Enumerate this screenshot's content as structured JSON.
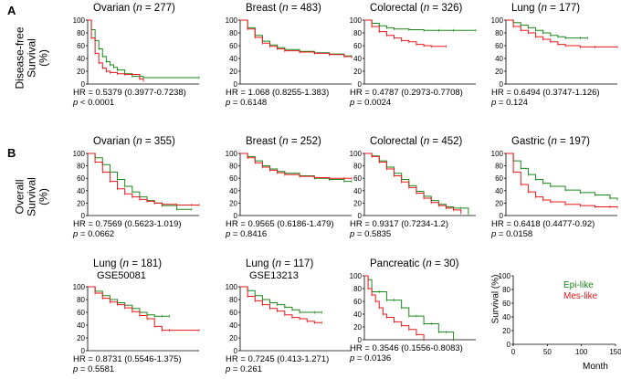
{
  "colors": {
    "epi": "#1a8a1a",
    "mes": "#e8181c"
  },
  "panel_labels": {
    "a": "A",
    "b": "B"
  },
  "row_labels": {
    "a": [
      "Disease-free",
      "Survival",
      "(%)"
    ],
    "b": [
      "Overall",
      "Survival",
      "(%)"
    ]
  },
  "legend": {
    "epi": "Epi-like",
    "mes": "Mes-like"
  },
  "legend_axis": {
    "ylabel": "Survival (%)",
    "xlabel": "Month"
  },
  "chart_data": [
    {
      "type": "line",
      "id": "a1",
      "title": "Ovarian (",
      "n": "277",
      "xlim": [
        0,
        150
      ],
      "ylim": [
        0,
        100
      ],
      "yticks": [
        "100",
        "80",
        "60",
        "40",
        "20",
        "0"
      ],
      "hr": "HR = 0.5379 (0.3977-0.7238)",
      "p_prefix": "p",
      "p": " < 0.0001",
      "series": [
        {
          "key": "epi",
          "x": [
            0,
            5,
            10,
            15,
            20,
            25,
            30,
            35,
            40,
            50,
            60,
            75,
            150
          ],
          "y": [
            100,
            85,
            68,
            55,
            43,
            35,
            30,
            26,
            22,
            16,
            12,
            10,
            10
          ]
        },
        {
          "key": "mes",
          "x": [
            0,
            5,
            10,
            15,
            20,
            25,
            30,
            40,
            50,
            60,
            70,
            75
          ],
          "y": [
            100,
            72,
            48,
            33,
            25,
            20,
            18,
            16,
            15,
            15,
            8,
            5
          ]
        }
      ]
    },
    {
      "type": "line",
      "id": "a2",
      "title": "Breast (",
      "n": "483",
      "xlim": [
        0,
        150
      ],
      "ylim": [
        0,
        100
      ],
      "yticks": [
        "100",
        "80",
        "60",
        "40",
        "20",
        "0"
      ],
      "hr": "HR = 1.068 (0.8255-1.383)",
      "p_prefix": "p",
      "p": " = 0.6148",
      "series": [
        {
          "key": "epi",
          "x": [
            0,
            10,
            20,
            30,
            40,
            50,
            60,
            80,
            100,
            120,
            140,
            150
          ],
          "y": [
            100,
            88,
            76,
            67,
            61,
            57,
            54,
            51,
            49,
            47,
            44,
            43
          ]
        },
        {
          "key": "mes",
          "x": [
            0,
            10,
            20,
            30,
            40,
            50,
            60,
            80,
            100,
            120,
            140,
            150
          ],
          "y": [
            100,
            86,
            73,
            64,
            59,
            55,
            52,
            50,
            48,
            46,
            43,
            42
          ]
        }
      ]
    },
    {
      "type": "line",
      "id": "a3",
      "title": "Colorectal (",
      "n": "326",
      "xlim": [
        0,
        150
      ],
      "ylim": [
        0,
        100
      ],
      "yticks": [
        "100",
        "80",
        "60",
        "40",
        "20",
        "0"
      ],
      "hr": "HR = 0.4787 (0.2973-0.7708)",
      "p_prefix": "p",
      "p": " = 0.0024",
      "series": [
        {
          "key": "epi",
          "x": [
            0,
            10,
            20,
            30,
            40,
            60,
            80,
            100,
            120,
            150
          ],
          "y": [
            100,
            95,
            91,
            88,
            86,
            85,
            84,
            84,
            84,
            84
          ]
        },
        {
          "key": "mes",
          "x": [
            0,
            10,
            20,
            30,
            40,
            50,
            60,
            70,
            80,
            90,
            110
          ],
          "y": [
            100,
            90,
            82,
            76,
            72,
            68,
            66,
            62,
            60,
            59,
            59
          ]
        }
      ]
    },
    {
      "type": "line",
      "id": "a4",
      "title": "Lung (",
      "n": "177",
      "xlim": [
        0,
        150
      ],
      "ylim": [
        0,
        100
      ],
      "yticks": [
        "100",
        "80",
        "60",
        "40",
        "20",
        "0"
      ],
      "hr": "HR = 0.6494 (0.3747-1.126)",
      "p_prefix": "p",
      "p": " = 0.124",
      "series": [
        {
          "key": "epi",
          "x": [
            0,
            10,
            20,
            30,
            40,
            50,
            60,
            70,
            80,
            100,
            110
          ],
          "y": [
            100,
            96,
            92,
            88,
            84,
            80,
            76,
            74,
            72,
            72,
            72
          ]
        },
        {
          "key": "mes",
          "x": [
            0,
            10,
            20,
            30,
            40,
            50,
            60,
            70,
            80,
            100,
            120,
            150
          ],
          "y": [
            100,
            90,
            84,
            80,
            74,
            70,
            66,
            62,
            60,
            58,
            58,
            58
          ]
        }
      ]
    },
    {
      "type": "line",
      "id": "b1",
      "title": "Ovarian (",
      "n": "355",
      "xlim": [
        0,
        150
      ],
      "ylim": [
        0,
        100
      ],
      "yticks": [
        "100",
        "80",
        "60",
        "40",
        "20",
        "0"
      ],
      "hr": "HR = 0.7569 (0.5623-1.019)",
      "p_prefix": "p",
      "p": " = 0.0662",
      "series": [
        {
          "key": "epi",
          "x": [
            0,
            10,
            20,
            30,
            40,
            50,
            60,
            70,
            80,
            90,
            100,
            120,
            140
          ],
          "y": [
            100,
            93,
            82,
            70,
            58,
            47,
            38,
            30,
            24,
            20,
            16,
            10,
            10
          ]
        },
        {
          "key": "mes",
          "x": [
            0,
            10,
            20,
            30,
            40,
            50,
            60,
            70,
            80,
            90,
            100,
            120,
            140,
            150
          ],
          "y": [
            100,
            86,
            70,
            55,
            43,
            35,
            30,
            26,
            23,
            20,
            18,
            17,
            17,
            17
          ]
        }
      ]
    },
    {
      "type": "line",
      "id": "b2",
      "title": "Breast (",
      "n": "252",
      "xlim": [
        0,
        150
      ],
      "ylim": [
        0,
        100
      ],
      "yticks": [
        "100",
        "80",
        "60",
        "40",
        "20",
        "0"
      ],
      "hr": "HR = 0.9565 (0.6186-1.479)",
      "p_prefix": "p",
      "p": " = 0.8416",
      "series": [
        {
          "key": "epi",
          "x": [
            0,
            10,
            20,
            30,
            40,
            50,
            60,
            80,
            100,
            120,
            140,
            150
          ],
          "y": [
            100,
            95,
            88,
            80,
            75,
            71,
            68,
            64,
            60,
            58,
            55,
            55
          ]
        },
        {
          "key": "mes",
          "x": [
            0,
            10,
            20,
            30,
            40,
            50,
            60,
            80,
            100,
            120,
            140,
            150
          ],
          "y": [
            100,
            93,
            85,
            78,
            73,
            69,
            66,
            63,
            61,
            60,
            60,
            60
          ]
        }
      ]
    },
    {
      "type": "line",
      "id": "b3",
      "title": "Colorectal (",
      "n": "452",
      "xlim": [
        0,
        150
      ],
      "ylim": [
        0,
        100
      ],
      "yticks": [
        "100",
        "80",
        "60",
        "40",
        "20",
        "0"
      ],
      "hr": "HR = 0.9317 (0.7234-1.2)",
      "p_prefix": "p",
      "p": " = 0.5835",
      "series": [
        {
          "key": "epi",
          "x": [
            0,
            10,
            20,
            30,
            40,
            50,
            60,
            70,
            80,
            90,
            100,
            110,
            120,
            130,
            140
          ],
          "y": [
            100,
            96,
            88,
            78,
            68,
            58,
            48,
            39,
            31,
            24,
            18,
            14,
            12,
            12,
            3
          ]
        },
        {
          "key": "mes",
          "x": [
            0,
            10,
            20,
            30,
            40,
            50,
            60,
            70,
            80,
            90,
            100,
            110,
            120,
            130
          ],
          "y": [
            100,
            95,
            86,
            75,
            64,
            54,
            45,
            36,
            28,
            21,
            16,
            12,
            9,
            4
          ]
        }
      ]
    },
    {
      "type": "line",
      "id": "b4",
      "title": "Gastric (",
      "n": "197",
      "xlim": [
        0,
        150
      ],
      "ylim": [
        0,
        100
      ],
      "yticks": [
        "100",
        "80",
        "60",
        "40",
        "20",
        "0"
      ],
      "hr": "HR = 0.6418 (0.4477-0.92)",
      "p_prefix": "p",
      "p": " = 0.0158",
      "series": [
        {
          "key": "epi",
          "x": [
            0,
            10,
            20,
            30,
            40,
            50,
            60,
            80,
            100,
            120,
            140,
            150
          ],
          "y": [
            100,
            88,
            76,
            66,
            58,
            52,
            47,
            41,
            37,
            33,
            28,
            26
          ]
        },
        {
          "key": "mes",
          "x": [
            0,
            10,
            20,
            30,
            40,
            50,
            60,
            80,
            100,
            120,
            140,
            150
          ],
          "y": [
            100,
            70,
            50,
            38,
            30,
            25,
            22,
            18,
            16,
            14,
            14,
            13
          ]
        }
      ]
    },
    {
      "type": "line",
      "id": "c1",
      "title": "Lung (",
      "n": "181",
      "subtitle": "GSE50081",
      "xlim": [
        0,
        150
      ],
      "ylim": [
        0,
        100
      ],
      "yticks": [
        "100",
        "80",
        "60",
        "40",
        "20",
        "0"
      ],
      "hr": "HR = 0.8731 (0.5546-1.375)",
      "p_prefix": "p",
      "p": " = 0.5581",
      "series": [
        {
          "key": "epi",
          "x": [
            0,
            10,
            20,
            30,
            40,
            50,
            60,
            70,
            80,
            90,
            100,
            110
          ],
          "y": [
            100,
            93,
            86,
            80,
            75,
            71,
            66,
            60,
            56,
            54,
            54,
            54
          ]
        },
        {
          "key": "mes",
          "x": [
            0,
            10,
            20,
            30,
            40,
            50,
            60,
            70,
            80,
            90,
            100,
            110,
            150
          ],
          "y": [
            100,
            90,
            82,
            76,
            72,
            67,
            61,
            55,
            50,
            38,
            32,
            32,
            32
          ]
        }
      ]
    },
    {
      "type": "line",
      "id": "c2",
      "title": "Lung (",
      "n": "117",
      "subtitle": "GSE13213",
      "xlim": [
        0,
        150
      ],
      "ylim": [
        0,
        100
      ],
      "yticks": [
        "100",
        "80",
        "60",
        "40",
        "20",
        "0"
      ],
      "hr": "HR = 0.7245 (0.413-1.271)",
      "p_prefix": "p",
      "p": " = 0.261",
      "series": [
        {
          "key": "epi",
          "x": [
            0,
            10,
            20,
            30,
            40,
            50,
            60,
            70,
            80,
            100,
            110
          ],
          "y": [
            100,
            94,
            86,
            80,
            75,
            72,
            68,
            64,
            60,
            60,
            60
          ]
        },
        {
          "key": "mes",
          "x": [
            0,
            10,
            20,
            30,
            40,
            50,
            60,
            70,
            80,
            90,
            100,
            110
          ],
          "y": [
            100,
            85,
            78,
            72,
            66,
            62,
            56,
            52,
            50,
            46,
            44,
            44
          ]
        }
      ]
    },
    {
      "type": "line",
      "id": "c3",
      "title": "Pancreatic (",
      "n": "30",
      "xlim": [
        0,
        150
      ],
      "ylim": [
        0,
        100
      ],
      "yticks": [
        "100",
        "80",
        "60",
        "40",
        "20",
        "0"
      ],
      "hr": "HR = 0.3546 (0.1556-0.8083)",
      "p_prefix": "p",
      "p": " = 0.0136",
      "series": [
        {
          "key": "epi",
          "x": [
            0,
            5,
            10,
            20,
            30,
            40,
            50,
            60,
            70,
            80,
            90,
            100,
            110,
            120
          ],
          "y": [
            100,
            94,
            75,
            75,
            62,
            62,
            50,
            37,
            37,
            25,
            25,
            12,
            12,
            0
          ]
        },
        {
          "key": "mes",
          "x": [
            0,
            5,
            10,
            15,
            20,
            25,
            30,
            40,
            50,
            60,
            70,
            80
          ],
          "y": [
            100,
            80,
            70,
            60,
            50,
            40,
            35,
            28,
            22,
            16,
            8,
            0
          ]
        }
      ]
    },
    {
      "type": "line",
      "id": "legend-axes",
      "xlim": [
        0,
        150
      ],
      "ylim": [
        0,
        100
      ],
      "yticks": [
        "100",
        "80",
        "60",
        "40",
        "20",
        "0"
      ],
      "xticks": [
        "0",
        "50",
        "100",
        "150"
      ],
      "series": []
    }
  ]
}
